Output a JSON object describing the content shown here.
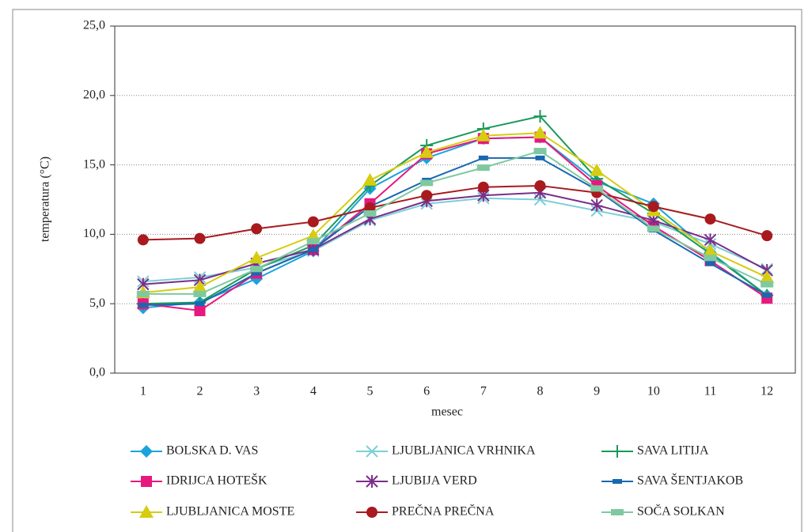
{
  "chart_data": {
    "type": "line",
    "xlabel": "mesec",
    "ylabel": "temperatura (°C)",
    "categories": [
      "1",
      "2",
      "3",
      "4",
      "5",
      "6",
      "7",
      "8",
      "9",
      "10",
      "11",
      "12"
    ],
    "ylim": [
      0,
      25
    ],
    "yticks": [
      {
        "value": 0,
        "label": "0,0"
      },
      {
        "value": 5,
        "label": "5,0"
      },
      {
        "value": 10,
        "label": "10,0"
      },
      {
        "value": 15,
        "label": "15,0"
      },
      {
        "value": 20,
        "label": "20,0"
      },
      {
        "value": 25,
        "label": "25,0"
      }
    ],
    "grid": true,
    "legend": "bottom",
    "series": [
      {
        "name": "BOLSKA D. VAS",
        "color": "#1aa3dc",
        "marker": "diamond",
        "values": [
          4.7,
          5.1,
          6.8,
          8.8,
          13.3,
          15.5,
          16.9,
          17.0,
          13.8,
          12.2,
          8.7,
          5.6
        ]
      },
      {
        "name": "LJUBLJANICA VRHNIKA",
        "color": "#7ccfd6",
        "marker": "x",
        "values": [
          6.6,
          6.9,
          7.6,
          8.8,
          11.0,
          12.2,
          12.6,
          12.5,
          11.7,
          10.9,
          9.3,
          7.5
        ]
      },
      {
        "name": "SAVA LITIJA",
        "color": "#1a9a5a",
        "marker": "plus",
        "values": [
          5.0,
          5.1,
          7.5,
          9.2,
          13.5,
          16.4,
          17.6,
          18.5,
          14.0,
          11.5,
          8.6,
          5.6
        ]
      },
      {
        "name": "IDRIJCA HOTEŠK",
        "color": "#e6197e",
        "marker": "square",
        "values": [
          5.0,
          4.5,
          7.2,
          8.9,
          12.2,
          15.8,
          16.9,
          17.0,
          13.5,
          10.6,
          8.1,
          5.4
        ]
      },
      {
        "name": "LJUBIJA VERD",
        "color": "#7a2d8a",
        "marker": "star",
        "values": [
          6.4,
          6.7,
          7.9,
          8.9,
          11.1,
          12.4,
          12.8,
          13.0,
          12.1,
          11.0,
          9.6,
          7.4
        ]
      },
      {
        "name": "SAVA ŠENTJAKOB",
        "color": "#1868b0",
        "marker": "dash",
        "values": [
          4.9,
          5.0,
          7.2,
          8.9,
          12.0,
          13.9,
          15.5,
          15.5,
          13.2,
          10.3,
          7.9,
          5.6
        ]
      },
      {
        "name": "LJUBLJANICA MOSTE",
        "color": "#d6cc10",
        "marker": "triangle",
        "values": [
          5.8,
          6.2,
          8.3,
          9.9,
          13.9,
          15.9,
          17.1,
          17.3,
          14.6,
          11.7,
          8.8,
          6.9
        ]
      },
      {
        "name": "PREČNA PREČNA",
        "color": "#a81a1e",
        "marker": "circle",
        "values": [
          9.6,
          9.7,
          10.4,
          10.9,
          11.9,
          12.8,
          13.4,
          13.5,
          13.0,
          12.0,
          11.1,
          9.9
        ]
      },
      {
        "name": "SOČA SOLKAN",
        "color": "#7fc9a0",
        "marker": "rect",
        "values": [
          5.7,
          5.7,
          7.5,
          9.5,
          11.5,
          13.7,
          14.8,
          16.0,
          13.3,
          10.4,
          8.3,
          6.4
        ]
      }
    ]
  }
}
